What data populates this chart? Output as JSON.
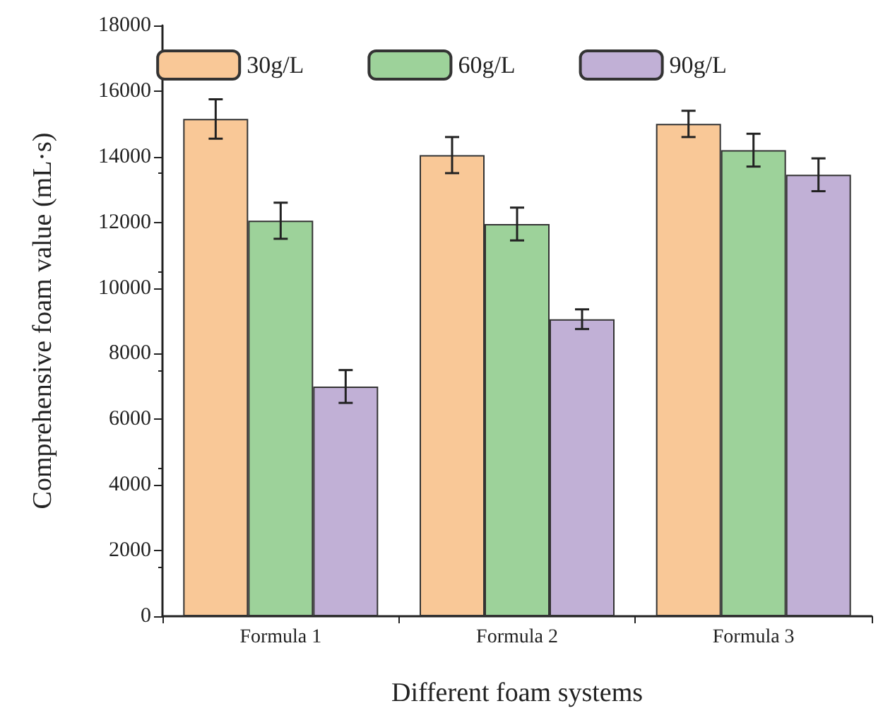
{
  "chart_data": {
    "type": "bar",
    "xlabel": "Different foam systems",
    "ylabel": "Comprehensive foam value (mL·s)",
    "categories": [
      "Formula 1",
      "Formula 2",
      "Formula 3"
    ],
    "series": [
      {
        "name": "30g/L",
        "color": "#f9c897",
        "values": [
          15150,
          14050,
          15000
        ],
        "errors": [
          600,
          550,
          400
        ]
      },
      {
        "name": "60g/L",
        "color": "#9dd29a",
        "values": [
          12050,
          11950,
          14200
        ],
        "errors": [
          550,
          500,
          500
        ]
      },
      {
        "name": "90g/L",
        "color": "#c1b0d6",
        "values": [
          7000,
          9050,
          13450
        ],
        "errors": [
          500,
          300,
          500
        ]
      }
    ],
    "ylim": [
      0,
      18000
    ],
    "yticks": [
      0,
      2000,
      4000,
      6000,
      8000,
      10000,
      12000,
      14000,
      16000,
      18000
    ],
    "grid": false,
    "legend": "top"
  }
}
